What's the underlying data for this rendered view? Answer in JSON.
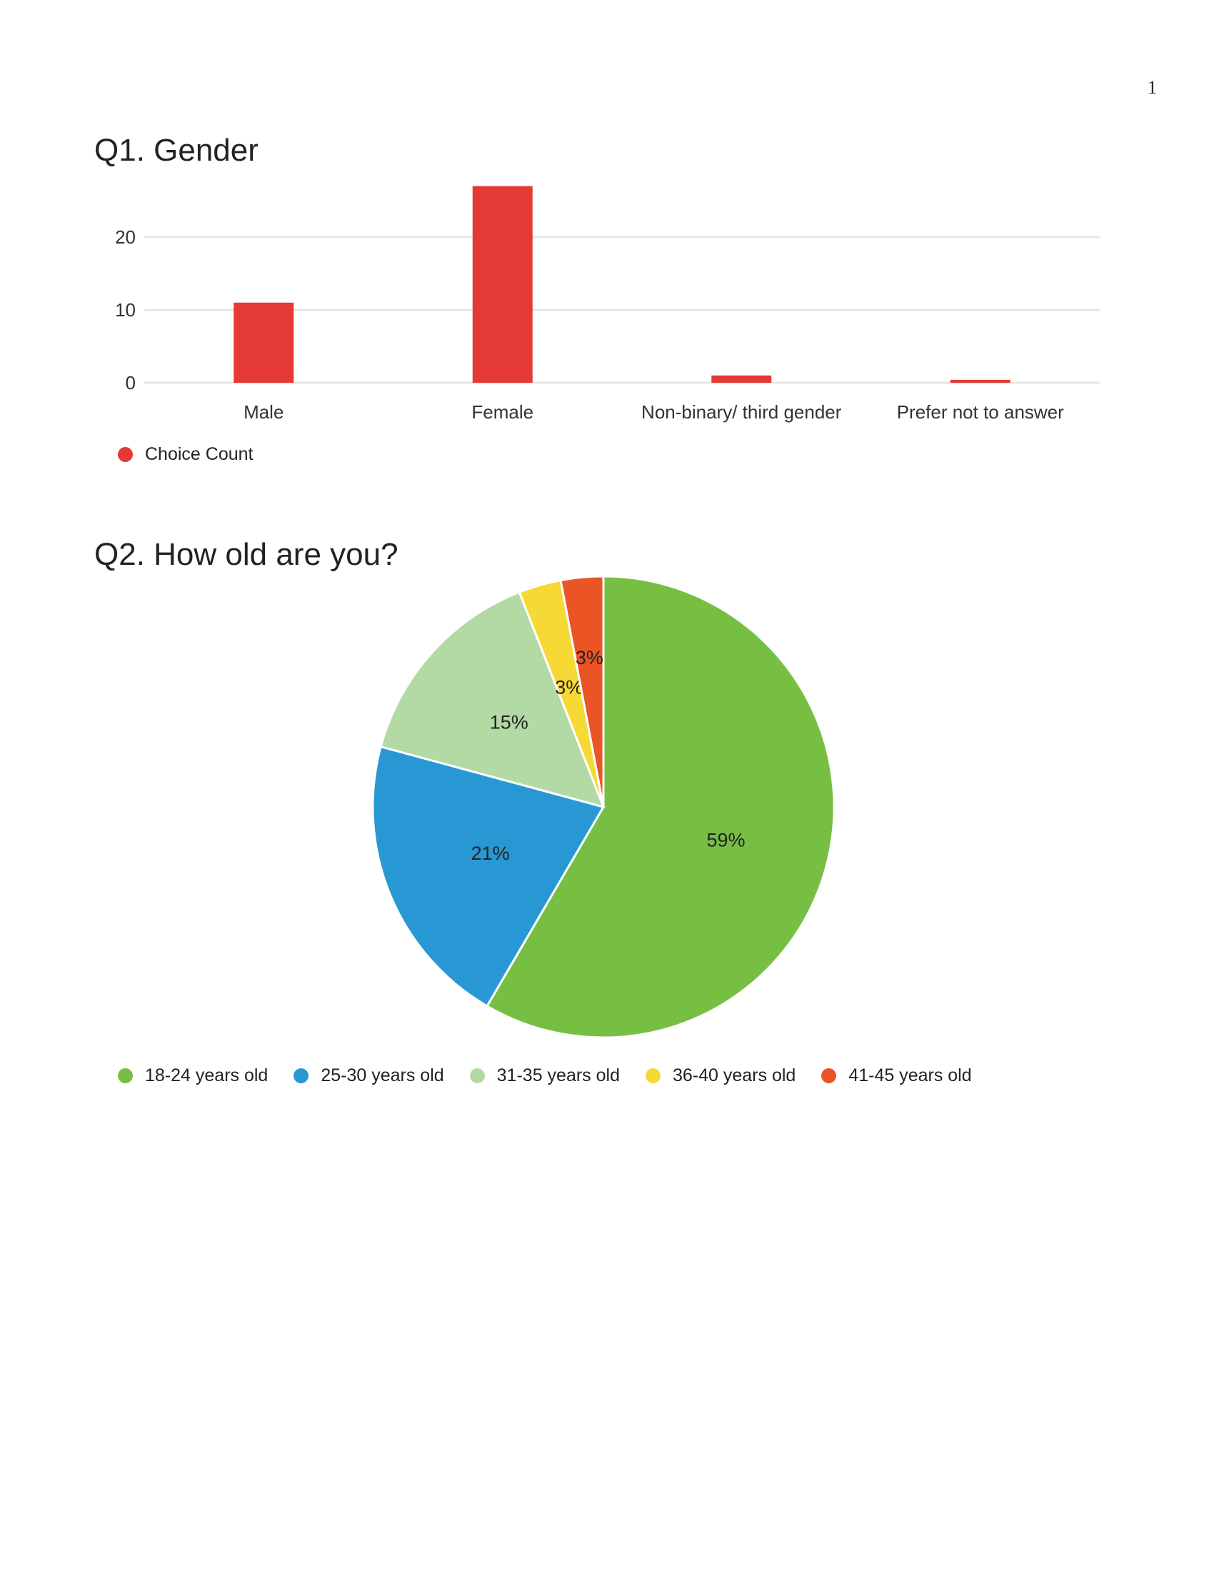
{
  "page_number": "1",
  "chart_data": [
    {
      "type": "bar",
      "title": "Q1. Gender",
      "categories": [
        "Male",
        "Female",
        "Non-binary/ third gender",
        "Prefer not to answer"
      ],
      "series": [
        {
          "name": "Choice Count",
          "values": [
            11,
            27,
            1,
            0.4
          ]
        }
      ],
      "yticks": [
        "0",
        "10",
        "20"
      ],
      "ylim": [
        0,
        27
      ],
      "grid": true,
      "legend_position": "bottom-left",
      "colors": {
        "bar": "#e53935",
        "grid": "#e6e6e6"
      }
    },
    {
      "type": "pie",
      "title": "Q2. How old are you?",
      "labels": [
        "18-24 years old",
        "25-30 years old",
        "31-35 years old",
        "36-40 years old",
        "41-45 years old"
      ],
      "values": [
        59,
        21,
        15,
        3,
        3
      ],
      "value_labels": [
        "59%",
        "21%",
        "15%",
        "3%",
        "3%"
      ],
      "colors": [
        "#76bf43",
        "#2898d5",
        "#b3d9a5",
        "#f6d935",
        "#eb5424"
      ],
      "legend_position": "bottom-left"
    }
  ]
}
